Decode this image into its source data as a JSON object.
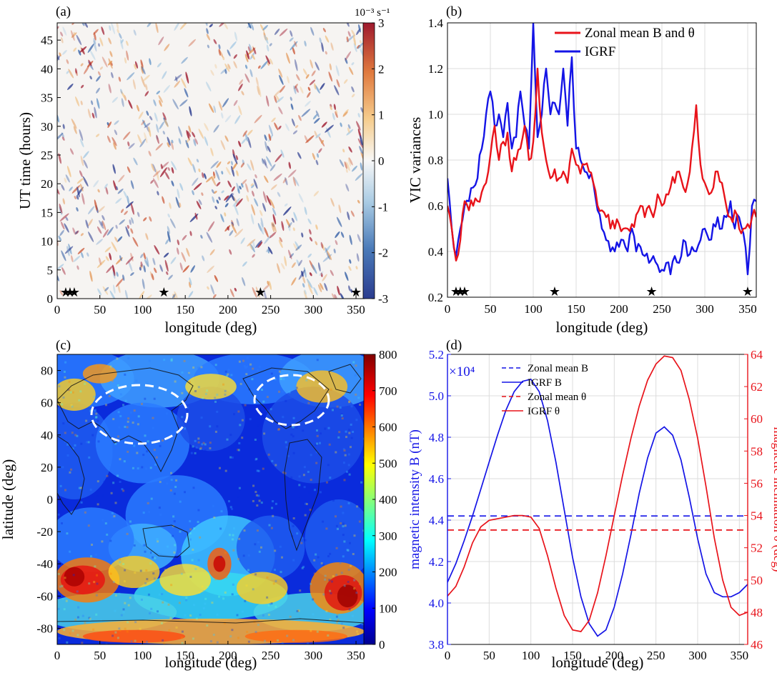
{
  "colors": {
    "red": "#e8131a",
    "blue": "#1414e6",
    "grid": "#dcdcdc",
    "white_dash": "#ffffff",
    "coast": "#111111"
  },
  "chart_data": [
    {
      "panel": "(a)",
      "type": "heatmap",
      "xlabel": "longitude (deg)",
      "ylabel": "UT time (hours)",
      "xlim": [
        0,
        360
      ],
      "ylim": [
        0,
        48
      ],
      "xticks": [
        0,
        50,
        100,
        150,
        200,
        250,
        300,
        350
      ],
      "yticks": [
        0,
        5,
        10,
        15,
        20,
        25,
        30,
        35,
        40,
        45
      ],
      "colorbar": {
        "unit": "10⁻³ s⁻¹",
        "range": [
          -3,
          3
        ],
        "ticks": [
          "3",
          "2",
          "1",
          "0",
          "-1",
          "-2",
          "-3"
        ],
        "colormap": "diverging red-white-blue"
      },
      "star_markers_lon": [
        10,
        15,
        20,
        125,
        238,
        350
      ]
    },
    {
      "panel": "(b)",
      "type": "line",
      "xlabel": "longitude (deg)",
      "ylabel": "VIC variances",
      "xlim": [
        0,
        360
      ],
      "ylim": [
        0.2,
        1.4
      ],
      "xticks": [
        0,
        50,
        100,
        150,
        200,
        250,
        300,
        350
      ],
      "yticks": [
        "0.2",
        "0.4",
        "0.6",
        "0.8",
        "1.0",
        "1.2",
        "1.4"
      ],
      "grid": true,
      "legend_position": "top-right",
      "star_markers_lon": [
        10,
        15,
        20,
        125,
        238,
        350
      ],
      "series": [
        {
          "name": "Zonal mean B and θ",
          "color": "#e8131a",
          "x": [
            0,
            5,
            10,
            15,
            20,
            25,
            30,
            35,
            40,
            45,
            50,
            55,
            60,
            65,
            70,
            75,
            80,
            85,
            90,
            95,
            100,
            105,
            110,
            115,
            120,
            125,
            130,
            135,
            140,
            145,
            150,
            155,
            160,
            165,
            170,
            175,
            180,
            185,
            190,
            195,
            200,
            205,
            210,
            215,
            220,
            225,
            230,
            235,
            240,
            245,
            250,
            255,
            260,
            265,
            270,
            275,
            280,
            285,
            290,
            295,
            300,
            305,
            310,
            315,
            320,
            325,
            330,
            335,
            340,
            345,
            350,
            355,
            360
          ],
          "values": [
            0.6,
            0.5,
            0.36,
            0.45,
            0.62,
            0.58,
            0.6,
            0.62,
            0.66,
            0.7,
            0.82,
            0.95,
            0.8,
            0.88,
            0.92,
            0.75,
            0.8,
            0.85,
            0.95,
            0.8,
            0.88,
            1.2,
            0.92,
            0.8,
            0.72,
            0.76,
            0.72,
            0.75,
            0.7,
            0.85,
            0.78,
            0.74,
            0.78,
            0.75,
            0.7,
            0.6,
            0.58,
            0.55,
            0.5,
            0.5,
            0.52,
            0.5,
            0.5,
            0.52,
            0.56,
            0.6,
            0.55,
            0.6,
            0.55,
            0.65,
            0.6,
            0.65,
            0.68,
            0.7,
            0.75,
            0.68,
            0.7,
            0.85,
            1.04,
            0.78,
            0.7,
            0.65,
            0.68,
            0.75,
            0.7,
            0.6,
            0.55,
            0.58,
            0.5,
            0.5,
            0.52,
            0.55,
            0.55
          ]
        },
        {
          "name": "IGRF",
          "color": "#1414e6",
          "x": [
            0,
            5,
            10,
            15,
            20,
            25,
            30,
            35,
            40,
            45,
            50,
            55,
            60,
            65,
            70,
            75,
            80,
            85,
            90,
            95,
            100,
            105,
            110,
            115,
            120,
            125,
            130,
            135,
            140,
            145,
            150,
            155,
            160,
            165,
            170,
            175,
            180,
            185,
            190,
            195,
            200,
            205,
            210,
            215,
            220,
            225,
            230,
            235,
            240,
            245,
            250,
            255,
            260,
            265,
            270,
            275,
            280,
            285,
            290,
            295,
            300,
            305,
            310,
            315,
            320,
            325,
            330,
            335,
            340,
            345,
            350,
            355,
            360
          ],
          "values": [
            0.72,
            0.5,
            0.38,
            0.5,
            0.6,
            0.62,
            0.68,
            0.72,
            0.85,
            1.0,
            1.1,
            0.95,
            1.0,
            0.9,
            1.05,
            0.85,
            0.9,
            1.1,
            0.95,
            0.85,
            1.4,
            0.9,
            1.0,
            1.2,
            1.0,
            1.05,
            1.0,
            1.2,
            0.95,
            1.25,
            0.85,
            0.8,
            0.75,
            0.72,
            0.7,
            0.58,
            0.5,
            0.45,
            0.4,
            0.4,
            0.42,
            0.45,
            0.4,
            0.5,
            0.4,
            0.42,
            0.38,
            0.35,
            0.38,
            0.34,
            0.32,
            0.35,
            0.3,
            0.38,
            0.35,
            0.45,
            0.38,
            0.42,
            0.4,
            0.45,
            0.5,
            0.45,
            0.52,
            0.55,
            0.5,
            0.55,
            0.62,
            0.5,
            0.55,
            0.48,
            0.3,
            0.6,
            0.62
          ]
        }
      ]
    },
    {
      "panel": "(c)",
      "type": "heatmap",
      "xlabel": "longitude (deg)",
      "ylabel": "latitude (deg)",
      "xlim": [
        0,
        360
      ],
      "ylim": [
        -90,
        90
      ],
      "xticks": [
        0,
        50,
        100,
        150,
        200,
        250,
        300,
        350
      ],
      "yticks": [
        -80,
        -60,
        -40,
        -20,
        0,
        20,
        40,
        60,
        80
      ],
      "colorbar": {
        "range": [
          0,
          800
        ],
        "ticks": [
          "800",
          "700",
          "600",
          "500",
          "400",
          "300",
          "200",
          "100",
          "0"
        ],
        "colormap": "jet"
      },
      "annotations": [
        {
          "shape": "dashed ellipse",
          "center_lon": 110,
          "center_lat": 37
        },
        {
          "shape": "dashed ellipse",
          "center_lon": 265,
          "center_lat": 48
        }
      ]
    },
    {
      "panel": "(d)",
      "type": "line",
      "xlabel": "longitude (deg)",
      "ylabel_left": "magnetic intensity B (nT)",
      "ylabel_right": "magnetic inclination θ (deg)",
      "left_multiplier": "×10⁴",
      "xlim": [
        0,
        360
      ],
      "ylim_left": [
        3.8,
        5.2
      ],
      "ylim_right": [
        46,
        64
      ],
      "xticks": [
        0,
        50,
        100,
        150,
        200,
        250,
        300,
        350
      ],
      "yticks_left": [
        "3.8",
        "4.0",
        "4.2",
        "4.4",
        "4.6",
        "4.8",
        "5.0",
        "5.2"
      ],
      "yticks_right": [
        "46",
        "48",
        "50",
        "52",
        "54",
        "56",
        "58",
        "60",
        "62",
        "64"
      ],
      "grid": true,
      "legend_position": "top-center",
      "series": [
        {
          "name": "Zonal mean B",
          "axis": "left",
          "color": "#1414e6",
          "dash": true,
          "x": [
            0,
            360
          ],
          "values": [
            4.42,
            4.42
          ]
        },
        {
          "name": "IGRF B",
          "axis": "left",
          "color": "#1414e6",
          "dash": false,
          "x": [
            0,
            10,
            20,
            30,
            40,
            50,
            60,
            70,
            80,
            90,
            100,
            110,
            120,
            130,
            140,
            150,
            160,
            170,
            180,
            190,
            200,
            210,
            220,
            230,
            240,
            250,
            260,
            270,
            280,
            290,
            300,
            310,
            320,
            330,
            340,
            350,
            360
          ],
          "values": [
            4.1,
            4.19,
            4.3,
            4.42,
            4.55,
            4.68,
            4.81,
            4.93,
            5.02,
            5.07,
            5.08,
            5.02,
            4.88,
            4.68,
            4.45,
            4.22,
            4.03,
            3.9,
            3.84,
            3.87,
            3.98,
            4.14,
            4.33,
            4.53,
            4.7,
            4.82,
            4.85,
            4.81,
            4.69,
            4.51,
            4.31,
            4.14,
            4.05,
            4.03,
            4.03,
            4.05,
            4.09
          ]
        },
        {
          "name": "Zonal mean θ",
          "axis": "right",
          "color": "#e8131a",
          "dash": true,
          "x": [
            0,
            360
          ],
          "values": [
            53.1,
            53.1
          ]
        },
        {
          "name": "IGRF θ",
          "axis": "right",
          "color": "#e8131a",
          "dash": false,
          "x": [
            0,
            10,
            20,
            30,
            40,
            50,
            60,
            70,
            80,
            90,
            100,
            110,
            120,
            130,
            140,
            150,
            160,
            170,
            180,
            190,
            200,
            210,
            220,
            230,
            240,
            250,
            260,
            270,
            280,
            290,
            300,
            310,
            320,
            330,
            340,
            350,
            360
          ],
          "values": [
            49.0,
            49.6,
            50.8,
            52.3,
            53.3,
            53.7,
            53.8,
            53.9,
            54.0,
            54.0,
            53.9,
            53.2,
            51.5,
            49.5,
            47.8,
            46.9,
            46.8,
            47.5,
            49.2,
            51.5,
            54.0,
            56.5,
            58.8,
            60.8,
            62.4,
            63.4,
            63.9,
            63.8,
            63.0,
            61.2,
            58.8,
            55.8,
            52.6,
            50.0,
            48.3,
            47.8,
            48.0
          ]
        }
      ]
    }
  ]
}
